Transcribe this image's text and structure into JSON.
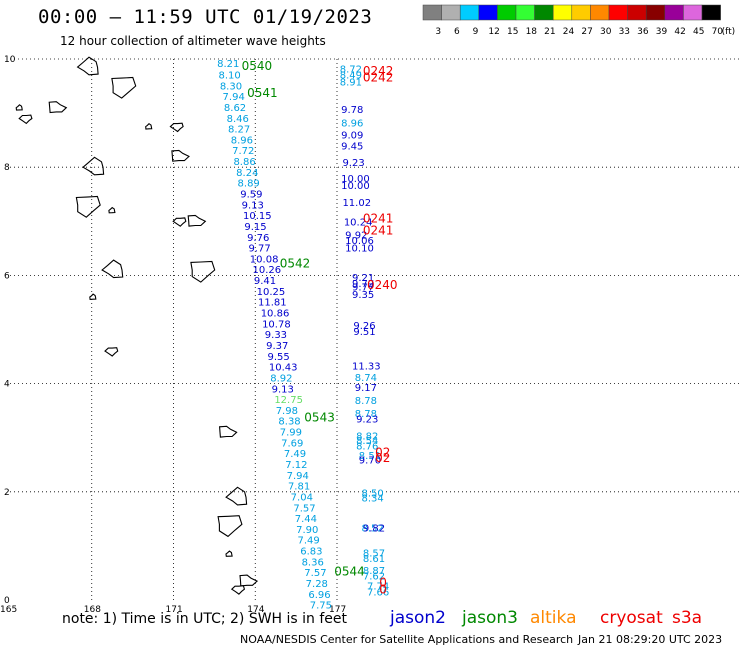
{
  "header": {
    "title": "00:00 – 11:59 UTC 01/19/2023",
    "subtitle": "12 hour collection of altimeter wave heights"
  },
  "legend": {
    "unit": "(ft)",
    "bins": [
      {
        "label": "3",
        "color": "#808080"
      },
      {
        "label": "6",
        "color": "#b0b0b0"
      },
      {
        "label": "9",
        "color": "#00ccff"
      },
      {
        "label": "12",
        "color": "#0000ff"
      },
      {
        "label": "15",
        "color": "#00cc00"
      },
      {
        "label": "18",
        "color": "#33ff33"
      },
      {
        "label": "21",
        "color": "#008800"
      },
      {
        "label": "24",
        "color": "#ffff00"
      },
      {
        "label": "27",
        "color": "#ffcc00"
      },
      {
        "label": "30",
        "color": "#ff8800"
      },
      {
        "label": "33",
        "color": "#ff0000"
      },
      {
        "label": "36",
        "color": "#cc0000"
      },
      {
        "label": "39",
        "color": "#880000"
      },
      {
        "label": "42",
        "color": "#990099"
      },
      {
        "label": "45",
        "color": "#dd66dd"
      },
      {
        "label": "70",
        "color": "#000000"
      }
    ]
  },
  "map": {
    "lon_ticks": [
      "165",
      "168",
      "171",
      "174",
      "177"
    ],
    "lat_ticks": [
      "0",
      "2",
      "4",
      "6",
      "8",
      "10"
    ],
    "lon_range": [
      165,
      178.5
    ],
    "lat_range": [
      0,
      10
    ]
  },
  "colors": {
    "jason2": "#0000cc",
    "jason3": "#008800",
    "altika": "#ff8800",
    "cryosat": "#ee0000",
    "s3a": "#ee0000",
    "cyan_value": "#00a0e0",
    "blue_value": "#0000cc",
    "green_value": "#66dd66"
  },
  "tracks": {
    "diag_times": [
      {
        "label": "0540",
        "lon": 173.5,
        "lat": 9.8
      },
      {
        "label": "0541",
        "lon": 173.7,
        "lat": 9.3
      },
      {
        "label": "0542",
        "lon": 174.9,
        "lat": 6.15
      },
      {
        "label": "0543",
        "lon": 175.8,
        "lat": 3.3
      },
      {
        "label": "0544",
        "lon": 176.9,
        "lat": 0.45
      }
    ],
    "diag_values": [
      {
        "v": "8.21",
        "lon": 172.6,
        "lat": 9.85,
        "c": "cyan"
      },
      {
        "v": "8.10",
        "lon": 172.65,
        "lat": 9.64,
        "c": "cyan"
      },
      {
        "v": "8.30",
        "lon": 172.7,
        "lat": 9.44,
        "c": "cyan"
      },
      {
        "v": "7.94",
        "lon": 172.8,
        "lat": 9.24,
        "c": "cyan"
      },
      {
        "v": "8.62",
        "lon": 172.85,
        "lat": 9.04,
        "c": "cyan"
      },
      {
        "v": "8.46",
        "lon": 172.95,
        "lat": 8.84,
        "c": "cyan"
      },
      {
        "v": "8.27",
        "lon": 173.0,
        "lat": 8.64,
        "c": "cyan"
      },
      {
        "v": "8.96",
        "lon": 173.1,
        "lat": 8.44,
        "c": "cyan"
      },
      {
        "v": "7.72",
        "lon": 173.15,
        "lat": 8.24,
        "c": "cyan"
      },
      {
        "v": "8.86",
        "lon": 173.2,
        "lat": 8.04,
        "c": "cyan"
      },
      {
        "v": "8.24",
        "lon": 173.3,
        "lat": 7.84,
        "c": "cyan"
      },
      {
        "v": "8.89",
        "lon": 173.35,
        "lat": 7.64,
        "c": "cyan"
      },
      {
        "v": "9.59",
        "lon": 173.45,
        "lat": 7.44,
        "c": "blue"
      },
      {
        "v": "9.13",
        "lon": 173.5,
        "lat": 7.24,
        "c": "blue"
      },
      {
        "v": "10.15",
        "lon": 173.55,
        "lat": 7.04,
        "c": "blue"
      },
      {
        "v": "9.15",
        "lon": 173.6,
        "lat": 6.84,
        "c": "blue"
      },
      {
        "v": "9.76",
        "lon": 173.7,
        "lat": 6.64,
        "c": "blue"
      },
      {
        "v": "9.77",
        "lon": 173.75,
        "lat": 6.44,
        "c": "blue"
      },
      {
        "v": "10.08",
        "lon": 173.8,
        "lat": 6.24,
        "c": "blue"
      },
      {
        "v": "10.26",
        "lon": 173.9,
        "lat": 6.04,
        "c": "blue"
      },
      {
        "v": "9.41",
        "lon": 173.95,
        "lat": 5.84,
        "c": "blue"
      },
      {
        "v": "10.25",
        "lon": 174.05,
        "lat": 5.64,
        "c": "blue"
      },
      {
        "v": "11.81",
        "lon": 174.1,
        "lat": 5.44,
        "c": "blue"
      },
      {
        "v": "10.86",
        "lon": 174.2,
        "lat": 5.24,
        "c": "blue"
      },
      {
        "v": "10.78",
        "lon": 174.25,
        "lat": 5.04,
        "c": "blue"
      },
      {
        "v": "9.33",
        "lon": 174.35,
        "lat": 4.84,
        "c": "blue"
      },
      {
        "v": "9.37",
        "lon": 174.4,
        "lat": 4.64,
        "c": "blue"
      },
      {
        "v": "9.55",
        "lon": 174.45,
        "lat": 4.44,
        "c": "blue"
      },
      {
        "v": "10.43",
        "lon": 174.5,
        "lat": 4.24,
        "c": "blue"
      },
      {
        "v": "8.92",
        "lon": 174.55,
        "lat": 4.04,
        "c": "cyan"
      },
      {
        "v": "9.13",
        "lon": 174.6,
        "lat": 3.84,
        "c": "blue"
      },
      {
        "v": "12.75",
        "lon": 174.7,
        "lat": 3.64,
        "c": "green"
      },
      {
        "v": "7.98",
        "lon": 174.75,
        "lat": 3.44,
        "c": "cyan"
      },
      {
        "v": "8.38",
        "lon": 174.85,
        "lat": 3.24,
        "c": "cyan"
      },
      {
        "v": "7.99",
        "lon": 174.9,
        "lat": 3.04,
        "c": "cyan"
      },
      {
        "v": "7.69",
        "lon": 174.95,
        "lat": 2.84,
        "c": "cyan"
      },
      {
        "v": "7.49",
        "lon": 175.05,
        "lat": 2.64,
        "c": "cyan"
      },
      {
        "v": "7.12",
        "lon": 175.1,
        "lat": 2.44,
        "c": "cyan"
      },
      {
        "v": "7.94",
        "lon": 175.15,
        "lat": 2.24,
        "c": "cyan"
      },
      {
        "v": "7.81",
        "lon": 175.2,
        "lat": 2.04,
        "c": "cyan"
      },
      {
        "v": "7.04",
        "lon": 175.3,
        "lat": 1.84,
        "c": "cyan"
      },
      {
        "v": "7.57",
        "lon": 175.4,
        "lat": 1.64,
        "c": "cyan"
      },
      {
        "v": "7.44",
        "lon": 175.45,
        "lat": 1.44,
        "c": "cyan"
      },
      {
        "v": "7.90",
        "lon": 175.5,
        "lat": 1.24,
        "c": "cyan"
      },
      {
        "v": "7.49",
        "lon": 175.55,
        "lat": 1.04,
        "c": "cyan"
      },
      {
        "v": "6.83",
        "lon": 175.65,
        "lat": 0.84,
        "c": "cyan"
      },
      {
        "v": "8.36",
        "lon": 175.7,
        "lat": 0.64,
        "c": "cyan"
      },
      {
        "v": "7.57",
        "lon": 175.8,
        "lat": 0.44,
        "c": "cyan"
      },
      {
        "v": "7.28",
        "lon": 175.85,
        "lat": 0.24,
        "c": "cyan"
      },
      {
        "v": "6.96",
        "lon": 175.95,
        "lat": 0.04,
        "c": "cyan"
      },
      {
        "v": "7.75",
        "lon": 176.0,
        "lat": -0.16,
        "c": "cyan"
      }
    ],
    "east_times": [
      {
        "label": "0242",
        "lon": 177.95,
        "lat": 9.7
      },
      {
        "label": "0242",
        "lon": 177.95,
        "lat": 9.58
      },
      {
        "label": "0241",
        "lon": 177.95,
        "lat": 6.98
      },
      {
        "label": "0241",
        "lon": 177.95,
        "lat": 6.76
      },
      {
        "label": "0240",
        "lon": 178.1,
        "lat": 5.75
      },
      {
        "label": "02",
        "lon": 178.4,
        "lat": 2.65
      },
      {
        "label": "02",
        "lon": 178.4,
        "lat": 2.55
      },
      {
        "label": "0",
        "lon": 178.55,
        "lat": 0.25
      },
      {
        "label": "0",
        "lon": 178.55,
        "lat": 0.12
      }
    ],
    "east_values": [
      {
        "v": "8.72",
        "lon": 177.1,
        "lat": 9.75,
        "c": "cyan"
      },
      {
        "v": "8.49",
        "lon": 177.1,
        "lat": 9.64,
        "c": "cyan"
      },
      {
        "v": "8.91",
        "lon": 177.1,
        "lat": 9.51,
        "c": "cyan"
      },
      {
        "v": "9.78",
        "lon": 177.15,
        "lat": 9.0,
        "c": "blue"
      },
      {
        "v": "8.96",
        "lon": 177.15,
        "lat": 8.75,
        "c": "cyan"
      },
      {
        "v": "9.09",
        "lon": 177.15,
        "lat": 8.53,
        "c": "blue"
      },
      {
        "v": "9.45",
        "lon": 177.15,
        "lat": 8.33,
        "c": "blue"
      },
      {
        "v": "9.23",
        "lon": 177.2,
        "lat": 8.02,
        "c": "blue"
      },
      {
        "v": "10.00",
        "lon": 177.15,
        "lat": 7.73,
        "c": "blue"
      },
      {
        "v": "10.00",
        "lon": 177.15,
        "lat": 7.6,
        "c": "blue"
      },
      {
        "v": "11.02",
        "lon": 177.2,
        "lat": 7.28,
        "c": "blue"
      },
      {
        "v": "10.24",
        "lon": 177.25,
        "lat": 6.92,
        "c": "blue"
      },
      {
        "v": "9.92",
        "lon": 177.3,
        "lat": 6.68,
        "c": "blue"
      },
      {
        "v": "10.06",
        "lon": 177.3,
        "lat": 6.58,
        "c": "blue"
      },
      {
        "v": "10.10",
        "lon": 177.3,
        "lat": 6.44,
        "c": "blue"
      },
      {
        "v": "9.21",
        "lon": 177.55,
        "lat": 5.9,
        "c": "blue"
      },
      {
        "v": "9.72",
        "lon": 177.55,
        "lat": 5.79,
        "c": "blue"
      },
      {
        "v": "9.77",
        "lon": 177.55,
        "lat": 5.72,
        "c": "blue"
      },
      {
        "v": "9.35",
        "lon": 177.55,
        "lat": 5.58,
        "c": "blue"
      },
      {
        "v": "9.26",
        "lon": 177.6,
        "lat": 5.01,
        "c": "blue"
      },
      {
        "v": "9.51",
        "lon": 177.6,
        "lat": 4.9,
        "c": "blue"
      },
      {
        "v": "11.33",
        "lon": 177.55,
        "lat": 4.26,
        "c": "blue"
      },
      {
        "v": "8.74",
        "lon": 177.65,
        "lat": 4.05,
        "c": "cyan"
      },
      {
        "v": "9.17",
        "lon": 177.65,
        "lat": 3.86,
        "c": "blue"
      },
      {
        "v": "8.78",
        "lon": 177.65,
        "lat": 3.62,
        "c": "cyan"
      },
      {
        "v": "8.78",
        "lon": 177.65,
        "lat": 3.38,
        "c": "cyan"
      },
      {
        "v": "9.23",
        "lon": 177.7,
        "lat": 3.28,
        "c": "blue"
      },
      {
        "v": "8.82",
        "lon": 177.7,
        "lat": 2.97,
        "c": "cyan"
      },
      {
        "v": "8.54",
        "lon": 177.7,
        "lat": 2.88,
        "c": "cyan"
      },
      {
        "v": "8.76",
        "lon": 177.7,
        "lat": 2.78,
        "c": "cyan"
      },
      {
        "v": "8.51",
        "lon": 177.8,
        "lat": 2.61,
        "c": "cyan"
      },
      {
        "v": "9.70",
        "lon": 177.8,
        "lat": 2.52,
        "c": "blue"
      },
      {
        "v": "8.50",
        "lon": 177.9,
        "lat": 1.91,
        "c": "cyan"
      },
      {
        "v": "8.34",
        "lon": 177.9,
        "lat": 1.82,
        "c": "cyan"
      },
      {
        "v": "8.52",
        "lon": 177.9,
        "lat": 1.27,
        "c": "cyan"
      },
      {
        "v": "9.82",
        "lon": 177.95,
        "lat": 1.27,
        "c": "blue"
      },
      {
        "v": "8.57",
        "lon": 177.95,
        "lat": 0.8,
        "c": "cyan"
      },
      {
        "v": "8.61",
        "lon": 177.95,
        "lat": 0.7,
        "c": "cyan"
      },
      {
        "v": "8.87",
        "lon": 177.95,
        "lat": 0.48,
        "c": "cyan"
      },
      {
        "v": "7.62",
        "lon": 177.95,
        "lat": 0.38,
        "c": "cyan"
      },
      {
        "v": "7.74",
        "lon": 178.1,
        "lat": 0.19,
        "c": "cyan"
      },
      {
        "v": "7.66",
        "lon": 178.1,
        "lat": 0.08,
        "c": "cyan"
      }
    ]
  },
  "islands": [
    {
      "name": "island",
      "lon": 165.35,
      "lat": 9.1
    },
    {
      "name": "island",
      "lon": 165.6,
      "lat": 8.9
    },
    {
      "name": "island",
      "lon": 166.7,
      "lat": 9.1
    },
    {
      "name": "island",
      "lon": 167.9,
      "lat": 9.85
    },
    {
      "name": "island",
      "lon": 169.1,
      "lat": 9.5
    },
    {
      "name": "island",
      "lon": 170.1,
      "lat": 8.75
    },
    {
      "name": "island",
      "lon": 171.15,
      "lat": 8.75
    },
    {
      "name": "island",
      "lon": 171.2,
      "lat": 8.2
    },
    {
      "name": "island",
      "lon": 168.1,
      "lat": 8.0
    },
    {
      "name": "island",
      "lon": 167.8,
      "lat": 7.3
    },
    {
      "name": "island",
      "lon": 168.75,
      "lat": 7.2
    },
    {
      "name": "island",
      "lon": 171.25,
      "lat": 7.0
    },
    {
      "name": "island",
      "lon": 171.8,
      "lat": 7.0
    },
    {
      "name": "island",
      "lon": 168.8,
      "lat": 6.1
    },
    {
      "name": "island",
      "lon": 172.0,
      "lat": 6.1
    },
    {
      "name": "island",
      "lon": 168.05,
      "lat": 5.6
    },
    {
      "name": "island",
      "lon": 168.75,
      "lat": 4.6
    },
    {
      "name": "island",
      "lon": 172.95,
      "lat": 3.1
    },
    {
      "name": "island",
      "lon": 173.35,
      "lat": 1.9
    },
    {
      "name": "island",
      "lon": 173.0,
      "lat": 1.4
    },
    {
      "name": "island",
      "lon": 173.05,
      "lat": 0.85
    },
    {
      "name": "island",
      "lon": 173.4,
      "lat": 0.2
    },
    {
      "name": "island",
      "lon": 173.7,
      "lat": 0.35
    }
  ],
  "footer": {
    "note": "note:  1) Time is in UTC;  2) SWH is in feet",
    "satellites": [
      "jason2",
      "jason3",
      "altika",
      "cryosat",
      "s3a"
    ],
    "credit": "NOAA/NESDIS Center for Satellite Applications and Research",
    "stamp": "Jan 21 08:29:20 UTC 2023"
  }
}
